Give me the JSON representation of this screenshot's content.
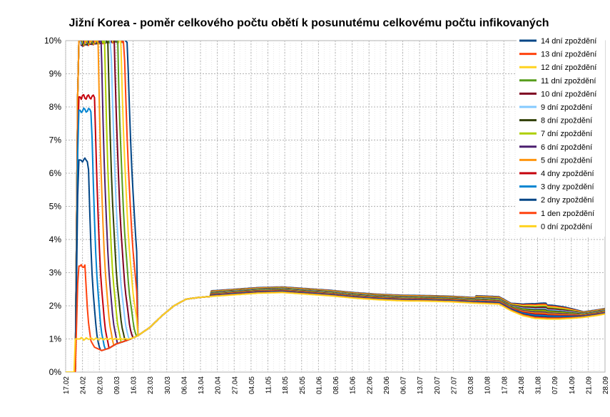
{
  "chart_data": {
    "type": "line",
    "title": "Jižní Korea - poměr celkového počtu obětí k posunutému celkovému počtu infikovaných",
    "ylim": [
      0,
      10
    ],
    "y_tick_labels": [
      "0%",
      "1%",
      "2%",
      "3%",
      "4%",
      "5%",
      "6%",
      "7%",
      "8%",
      "9%",
      "10%"
    ],
    "x_day_range": [
      0,
      224
    ],
    "x_tick_labels": [
      "17.02",
      "24.02",
      "02.03",
      "09.03",
      "16.03",
      "23.03",
      "30.03",
      "06.04",
      "13.04",
      "20.04",
      "27.04",
      "04.05",
      "11.05",
      "18.05",
      "25.05",
      "01.06",
      "08.06",
      "15.06",
      "22.06",
      "29.06",
      "06.07",
      "13.07",
      "20.07",
      "27.07",
      "03.08",
      "10.08",
      "17.08",
      "24.08",
      "31.08",
      "07.09",
      "14.09",
      "21.09",
      "28.09"
    ],
    "grid": true,
    "legend_position": "right",
    "series": [
      {
        "name": "14 dní zpoždění",
        "color": "#004586",
        "lag": 14
      },
      {
        "name": "13 dní zpoždění",
        "color": "#ff420e",
        "lag": 13
      },
      {
        "name": "12 dní zpoždění",
        "color": "#ffd320",
        "lag": 12
      },
      {
        "name": "11 dní zpoždění",
        "color": "#579d1c",
        "lag": 11
      },
      {
        "name": "10 dní zpoždění",
        "color": "#7e0021",
        "lag": 10
      },
      {
        "name": "9 dní zpoždění",
        "color": "#83caff",
        "lag": 9
      },
      {
        "name": "8 dní zpoždění",
        "color": "#314004",
        "lag": 8
      },
      {
        "name": "7 dní zpoždění",
        "color": "#aecf00",
        "lag": 7
      },
      {
        "name": "6 dní zpoždění",
        "color": "#4b1f6f",
        "lag": 6
      },
      {
        "name": "5 dní zpoždění",
        "color": "#ff950e",
        "lag": 5
      },
      {
        "name": "4 dny zpoždění",
        "color": "#c5000b",
        "lag": 4
      },
      {
        "name": "3 dny zpoždění",
        "color": "#0084d1",
        "lag": 3
      },
      {
        "name": "2 dny zpoždění",
        "color": "#004586",
        "lag": 2
      },
      {
        "name": "1 den zpoždění",
        "color": "#ff420e",
        "lag": 1
      },
      {
        "name": "0 dní zpoždění",
        "color": "#ffd320",
        "lag": 0
      }
    ],
    "base_curve": {
      "x": [
        0,
        4,
        5,
        6,
        7,
        8,
        10,
        12,
        15,
        18,
        21,
        24,
        27,
        30,
        35,
        40,
        45,
        50,
        55,
        60,
        70,
        80,
        90,
        100,
        110,
        120,
        130,
        140,
        150,
        160,
        170,
        180,
        185,
        190,
        195,
        200,
        205,
        210,
        215,
        220,
        224
      ],
      "y": [
        0,
        0,
        1.0,
        0.95,
        0.45,
        0.95,
        1.0,
        0.75,
        0.65,
        0.72,
        0.85,
        0.92,
        1.0,
        1.1,
        1.35,
        1.7,
        2.0,
        2.2,
        2.25,
        2.28,
        2.33,
        2.38,
        2.4,
        2.35,
        2.3,
        2.23,
        2.18,
        2.15,
        2.14,
        2.12,
        2.08,
        2.05,
        1.85,
        1.7,
        1.62,
        1.6,
        1.6,
        1.62,
        1.65,
        1.7,
        1.75
      ]
    },
    "early_peaks": [
      {
        "lag": 0,
        "peak": 1.0
      },
      {
        "lag": 1,
        "peak": 3.2
      },
      {
        "lag": 2,
        "peak": 6.4
      },
      {
        "lag": 3,
        "peak": 7.9
      },
      {
        "lag": 4,
        "peak": 8.3
      },
      {
        "lag": 5,
        "peak": 10
      },
      {
        "lag": 6,
        "peak": 10
      },
      {
        "lag": 7,
        "peak": 10
      },
      {
        "lag": 8,
        "peak": 10
      },
      {
        "lag": 9,
        "peak": 10
      },
      {
        "lag": 10,
        "peak": 10
      },
      {
        "lag": 11,
        "peak": 10
      },
      {
        "lag": 12,
        "peak": 10
      },
      {
        "lag": 13,
        "peak": 10
      },
      {
        "lag": 14,
        "peak": 10
      }
    ]
  }
}
